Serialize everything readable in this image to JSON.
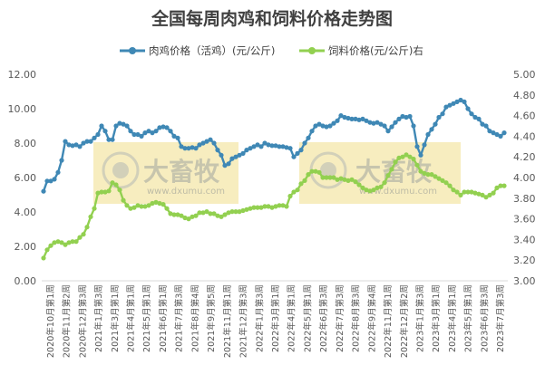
{
  "chart_data": {
    "type": "line",
    "title": "全国每周肉鸡和饲料价格走势图",
    "colors": {
      "chicken": "#3f88b5",
      "feed": "#92d050",
      "axis": "#d9d9d9",
      "text": "#595959",
      "watermark_box": "#f6eab4"
    },
    "y_left": {
      "ticks": [
        "0.00",
        "2.00",
        "4.00",
        "6.00",
        "8.00",
        "10.00",
        "12.00"
      ],
      "min": 0,
      "max": 12
    },
    "y_right": {
      "ticks": [
        "3.00",
        "3.20",
        "3.40",
        "3.60",
        "3.80",
        "4.00",
        "4.20",
        "4.40",
        "4.60",
        "4.80",
        "5.00"
      ],
      "min": 3,
      "max": 5
    },
    "watermarks": [
      {
        "brand": "大畜牧",
        "site": "www.dxumu.com"
      },
      {
        "brand": "大畜牧",
        "site": "www.dxumu.com"
      }
    ],
    "x_tick_labels": [
      "2020年10月第1周",
      "2020年11月第2周",
      "2020年12月第3周",
      "2021年1月第3周",
      "2021年3月第1周",
      "2021年4月第1周",
      "2021年5月第1周",
      "2021年6月第1周",
      "2021年7月第3周",
      "2021年8月第4周",
      "2021年9月第5周",
      "2021年11月第1周",
      "2021年12月第3周",
      "2022年1月第3周",
      "2022年3月第1周",
      "2022年4月第1周",
      "2022年5月第1周",
      "2022年6月第3周",
      "2022年7月第3周",
      "2022年8月第3周",
      "2022年9月第4周",
      "2022年11月第1周",
      "2022年12月第2周",
      "2023年1月第3周",
      "2023年3月第1周",
      "2023年4月第1周",
      "2023年5月第1周",
      "2023年6月第3周",
      "2023年7月第3周"
    ],
    "series": [
      {
        "name": "肉鸡价格（活鸡）(元/公斤)",
        "axis": "left",
        "values": [
          5.2,
          5.8,
          5.8,
          5.9,
          6.3,
          7.0,
          8.1,
          7.9,
          7.85,
          7.9,
          7.8,
          8.0,
          8.1,
          8.1,
          8.3,
          8.5,
          9.0,
          8.7,
          8.2,
          8.2,
          9.0,
          9.15,
          9.1,
          9.0,
          8.7,
          8.5,
          8.5,
          8.4,
          8.6,
          8.7,
          8.6,
          8.7,
          8.9,
          8.95,
          8.9,
          8.7,
          8.4,
          8.3,
          7.8,
          7.7,
          7.7,
          7.75,
          7.7,
          7.9,
          8.0,
          8.1,
          8.2,
          8.0,
          7.6,
          7.3,
          6.7,
          6.8,
          7.1,
          7.2,
          7.3,
          7.4,
          7.6,
          7.7,
          7.8,
          7.9,
          7.8,
          8.0,
          7.9,
          7.85,
          7.85,
          7.8,
          7.8,
          7.75,
          7.7,
          7.2,
          7.4,
          7.6,
          8.0,
          8.3,
          8.7,
          9.0,
          9.1,
          9.0,
          8.95,
          9.0,
          9.15,
          9.3,
          9.6,
          9.5,
          9.45,
          9.4,
          9.4,
          9.35,
          9.4,
          9.3,
          9.2,
          9.15,
          9.2,
          9.1,
          9.0,
          8.7,
          8.95,
          9.2,
          9.4,
          9.55,
          9.5,
          9.55,
          9.0,
          7.8,
          7.3,
          7.9,
          8.5,
          8.8,
          9.1,
          9.5,
          9.7,
          10.1,
          10.2,
          10.3,
          10.4,
          10.5,
          10.4,
          10.0,
          9.7,
          9.5,
          9.4,
          9.1,
          9.0,
          8.7,
          8.6,
          8.5,
          8.4,
          8.6
        ]
      },
      {
        "name": "饲料价格(元/公斤)右",
        "axis": "right",
        "values": [
          3.22,
          3.3,
          3.34,
          3.37,
          3.38,
          3.37,
          3.35,
          3.37,
          3.38,
          3.38,
          3.42,
          3.45,
          3.52,
          3.62,
          3.7,
          3.85,
          3.86,
          3.86,
          3.87,
          3.95,
          3.93,
          3.88,
          3.78,
          3.73,
          3.7,
          3.71,
          3.73,
          3.72,
          3.72,
          3.73,
          3.75,
          3.76,
          3.75,
          3.74,
          3.7,
          3.65,
          3.64,
          3.64,
          3.63,
          3.61,
          3.6,
          3.62,
          3.63,
          3.66,
          3.66,
          3.67,
          3.65,
          3.65,
          3.63,
          3.62,
          3.64,
          3.66,
          3.67,
          3.67,
          3.67,
          3.68,
          3.69,
          3.7,
          3.71,
          3.71,
          3.71,
          3.72,
          3.72,
          3.71,
          3.72,
          3.73,
          3.73,
          3.72,
          3.82,
          3.86,
          3.88,
          3.94,
          3.97,
          4.03,
          4.06,
          4.06,
          4.05,
          4.0,
          4.0,
          4.0,
          4.0,
          3.98,
          3.99,
          3.98,
          3.97,
          3.98,
          3.96,
          3.93,
          3.9,
          3.88,
          3.87,
          3.88,
          3.9,
          3.91,
          3.95,
          4.02,
          4.08,
          4.15,
          4.19,
          4.2,
          4.22,
          4.2,
          4.18,
          4.12,
          4.06,
          4.04,
          4.03,
          4.03,
          4.01,
          3.99,
          3.97,
          3.95,
          3.92,
          3.88,
          3.86,
          3.83,
          3.86,
          3.86,
          3.86,
          3.85,
          3.84,
          3.83,
          3.81,
          3.83,
          3.85,
          3.9,
          3.92,
          3.92
        ]
      }
    ]
  }
}
